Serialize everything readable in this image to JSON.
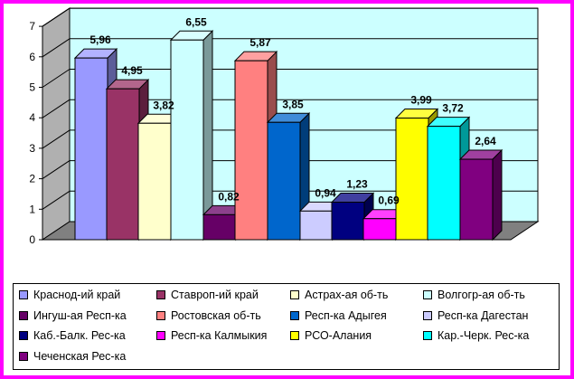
{
  "chart_data": {
    "type": "bar",
    "title": "",
    "xlabel": "",
    "ylabel": "",
    "ylim": [
      0,
      7
    ],
    "yticks": [
      "0",
      "1",
      "2",
      "3",
      "4",
      "5",
      "6",
      "7"
    ],
    "grid": true,
    "legend_position": "bottom",
    "series": [
      {
        "name": "Краснод-ий край",
        "value": 5.96,
        "label": "5,96",
        "color": "#9999ff"
      },
      {
        "name": "Ставроп-ий край",
        "value": 4.95,
        "label": "4,95",
        "color": "#993366"
      },
      {
        "name": "Астрах-ая об-ть",
        "value": 3.82,
        "label": "3,82",
        "color": "#ffffcc"
      },
      {
        "name": "Волгогр-ая об-ть",
        "value": 6.55,
        "label": "6,55",
        "color": "#ccffff"
      },
      {
        "name": "Ингуш-ая Респ-ка",
        "value": 0.82,
        "label": "0,82",
        "color": "#660066"
      },
      {
        "name": "Ростовская об-ть",
        "value": 5.87,
        "label": "5,87",
        "color": "#ff8080"
      },
      {
        "name": "Респ-ка Адыгея",
        "value": 3.85,
        "label": "3,85",
        "color": "#0066cc"
      },
      {
        "name": "Респ-ка Дагестан",
        "value": 0.94,
        "label": "0,94",
        "color": "#ccccff"
      },
      {
        "name": "Каб.-Балк. Рес-ка",
        "value": 1.23,
        "label": "1,23",
        "color": "#000080"
      },
      {
        "name": "Респ-ка Калмыкия",
        "value": 0.69,
        "label": "0,69",
        "color": "#ff00ff"
      },
      {
        "name": "РСО-Алания",
        "value": 3.99,
        "label": "3,99",
        "color": "#ffff00"
      },
      {
        "name": "Кар.-Черк. Рес-ка",
        "value": 3.72,
        "label": "3,72",
        "color": "#00ffff"
      },
      {
        "name": "Чеченская Рес-ка",
        "value": 2.64,
        "label": "2,64",
        "color": "#800080"
      }
    ]
  },
  "colors": {
    "frame_border": "#ff00ff",
    "wall": "#ccffff",
    "floor": "#808080"
  }
}
